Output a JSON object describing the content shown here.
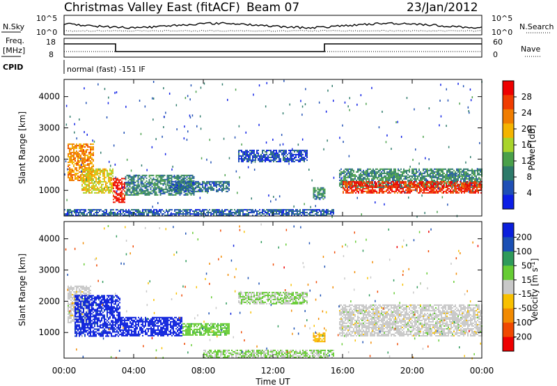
{
  "header": {
    "title": "Christmas Valley East (fitACF)",
    "beam": "Beam 07",
    "date": "23/Jan/2012"
  },
  "top_panels": {
    "nsky_label": "N.Sky",
    "nsearch_label": "N.Search",
    "nsky_ticks": [
      "10^5",
      "10^0"
    ],
    "nsearch_ticks": [
      "10^5",
      "10^0"
    ],
    "freq_label_line1": "Freq.",
    "freq_label_line2": "[MHz]",
    "freq_ticks": [
      "18",
      "8"
    ],
    "nave_label": "Nave",
    "nave_ticks": [
      "60",
      "0"
    ],
    "cpid_label": "CPID",
    "cpid_text": "normal (fast) -151 IF"
  },
  "colors": {
    "power": [
      "#0c1ee6",
      "#1f4fb5",
      "#2d7a6a",
      "#4aa04a",
      "#a9d42b",
      "#f4b400",
      "#f07d00",
      "#f03c00",
      "#ee0000"
    ],
    "velocity": [
      "#0a1fdc",
      "#1a4fb4",
      "#2e9a5a",
      "#66cc33",
      "#c8c8c8",
      "#f8c000",
      "#f28a00",
      "#f04800",
      "#ee0000"
    ]
  },
  "chart_data": [
    {
      "type": "heatmap",
      "name": "power-panel",
      "ylabel": "Slant Range [km]",
      "xlabel": "Time UT",
      "x_ticks": [
        "00:00",
        "04:00",
        "08:00",
        "12:00",
        "16:00",
        "20:00",
        "00:00"
      ],
      "xlim_hours": [
        0,
        24
      ],
      "y_ticks": [
        1000,
        2000,
        3000,
        4000
      ],
      "ylim_km": [
        180,
        4550
      ],
      "colorbar_label": "Power [dB]",
      "colorbar_ticks": [
        4,
        8,
        12,
        16,
        20,
        24,
        28
      ],
      "clim": [
        0,
        32
      ],
      "regions": [
        {
          "t0": 0.2,
          "t1": 1.7,
          "r0": 1300,
          "r1": 2500,
          "v": 22
        },
        {
          "t0": 1.0,
          "t1": 2.8,
          "r0": 900,
          "r1": 1700,
          "v": 18
        },
        {
          "t0": 2.8,
          "t1": 3.5,
          "r0": 600,
          "r1": 1400,
          "v": 30
        },
        {
          "t0": 3.5,
          "t1": 7.5,
          "r0": 850,
          "r1": 1500,
          "v": 9
        },
        {
          "t0": 6.0,
          "t1": 9.5,
          "r0": 950,
          "r1": 1300,
          "v": 7
        },
        {
          "t0": 10.0,
          "t1": 14.0,
          "r0": 1900,
          "r1": 2300,
          "v": 5
        },
        {
          "t0": 14.3,
          "t1": 15.0,
          "r0": 700,
          "r1": 1100,
          "v": 10
        },
        {
          "t0": 15.8,
          "t1": 24.0,
          "r0": 1100,
          "r1": 1700,
          "v": 10
        },
        {
          "t0": 16.0,
          "t1": 24.0,
          "r0": 900,
          "r1": 1300,
          "v": 28
        },
        {
          "t0": 0.0,
          "t1": 15.5,
          "r0": 200,
          "r1": 400,
          "v": 6
        }
      ]
    },
    {
      "type": "heatmap",
      "name": "velocity-panel",
      "ylabel": "Slant Range [km]",
      "xlabel": "Time UT",
      "x_ticks": [
        "00:00",
        "04:00",
        "08:00",
        "12:00",
        "16:00",
        "20:00",
        "00:00"
      ],
      "xlim_hours": [
        0,
        24
      ],
      "y_ticks": [
        1000,
        2000,
        3000,
        4000
      ],
      "ylim_km": [
        180,
        4550
      ],
      "colorbar_label": "Velocity [m s^-1]",
      "colorbar_ticks": [
        200,
        100,
        50,
        15,
        -15,
        -50,
        -100,
        -200
      ],
      "clim": [
        -250,
        250
      ],
      "regions": [
        {
          "t0": 0.2,
          "t1": 1.5,
          "r0": 1300,
          "r1": 2500,
          "v": 0
        },
        {
          "t0": 0.6,
          "t1": 3.2,
          "r0": 900,
          "r1": 2200,
          "v": 220
        },
        {
          "t0": 3.2,
          "t1": 6.8,
          "r0": 900,
          "r1": 1500,
          "v": 230
        },
        {
          "t0": 6.8,
          "t1": 9.5,
          "r0": 900,
          "r1": 1300,
          "v": 60
        },
        {
          "t0": 10.0,
          "t1": 14.0,
          "r0": 1900,
          "r1": 2300,
          "v": 30
        },
        {
          "t0": 14.3,
          "t1": 15.0,
          "r0": 700,
          "r1": 1000,
          "v": -70
        },
        {
          "t0": 15.8,
          "t1": 24.0,
          "r0": 900,
          "r1": 1900,
          "v": 0
        },
        {
          "t0": 8.0,
          "t1": 15.5,
          "r0": 200,
          "r1": 450,
          "v": 30
        }
      ]
    }
  ]
}
